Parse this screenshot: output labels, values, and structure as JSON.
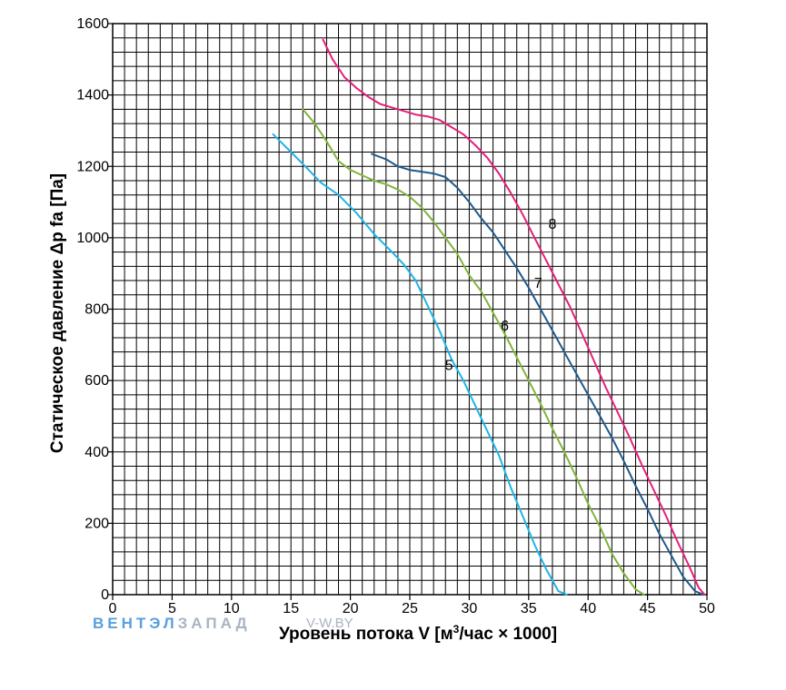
{
  "chart_data": {
    "type": "line",
    "title": "",
    "xlabel_prefix": "Уровень потока V [м",
    "xlabel_sup": "3",
    "xlabel_suffix": "/час × 1000]",
    "ylabel": "Статическое давление Δp fa [Па]",
    "xlim": [
      0,
      50
    ],
    "ylim": [
      0,
      1600
    ],
    "xticks": [
      "0",
      "5",
      "10",
      "15",
      "20",
      "25",
      "30",
      "35",
      "40",
      "45",
      "50"
    ],
    "yticks": [
      "0",
      "200",
      "400",
      "600",
      "800",
      "1000",
      "1200",
      "1400",
      "1600"
    ],
    "grid": true,
    "series": [
      {
        "name": "5",
        "color": "#1eb4e6",
        "points": [
          [
            13.5,
            1290
          ],
          [
            15,
            1240
          ],
          [
            16.5,
            1190
          ],
          [
            17.5,
            1155
          ],
          [
            19,
            1120
          ],
          [
            20.5,
            1070
          ],
          [
            22,
            1010
          ],
          [
            23.5,
            960
          ],
          [
            24.5,
            925
          ],
          [
            25.5,
            880
          ],
          [
            26.5,
            810
          ],
          [
            27.5,
            740
          ],
          [
            28.5,
            660
          ],
          [
            29.5,
            600
          ],
          [
            30.5,
            530
          ],
          [
            31.5,
            460
          ],
          [
            32.5,
            390
          ],
          [
            33.5,
            300
          ],
          [
            34.5,
            220
          ],
          [
            35.5,
            140
          ],
          [
            36.5,
            70
          ],
          [
            37.5,
            10
          ],
          [
            38.2,
            0
          ]
        ]
      },
      {
        "name": "6",
        "color": "#80b43c",
        "points": [
          [
            16,
            1360
          ],
          [
            17,
            1320
          ],
          [
            18,
            1270
          ],
          [
            19,
            1215
          ],
          [
            20,
            1190
          ],
          [
            21,
            1175
          ],
          [
            22,
            1160
          ],
          [
            23,
            1150
          ],
          [
            24,
            1135
          ],
          [
            25,
            1115
          ],
          [
            26,
            1085
          ],
          [
            27,
            1045
          ],
          [
            28,
            1000
          ],
          [
            29,
            955
          ],
          [
            30,
            895
          ],
          [
            31,
            850
          ],
          [
            32,
            790
          ],
          [
            33,
            730
          ],
          [
            34,
            665
          ],
          [
            35,
            600
          ],
          [
            36,
            535
          ],
          [
            37,
            465
          ],
          [
            38,
            400
          ],
          [
            39,
            330
          ],
          [
            40,
            255
          ],
          [
            41,
            190
          ],
          [
            42,
            115
          ],
          [
            43,
            60
          ],
          [
            44,
            15
          ],
          [
            44.7,
            0
          ]
        ]
      },
      {
        "name": "7",
        "color": "#1e5a8c",
        "points": [
          [
            21.8,
            1235
          ],
          [
            23,
            1220
          ],
          [
            24,
            1200
          ],
          [
            25,
            1190
          ],
          [
            26,
            1185
          ],
          [
            27,
            1180
          ],
          [
            28,
            1170
          ],
          [
            29,
            1140
          ],
          [
            30,
            1100
          ],
          [
            31,
            1055
          ],
          [
            32,
            1015
          ],
          [
            33,
            965
          ],
          [
            34,
            915
          ],
          [
            35,
            860
          ],
          [
            36,
            800
          ],
          [
            37,
            740
          ],
          [
            38,
            680
          ],
          [
            39,
            620
          ],
          [
            40,
            560
          ],
          [
            41,
            500
          ],
          [
            42,
            440
          ],
          [
            43,
            375
          ],
          [
            44,
            305
          ],
          [
            45,
            240
          ],
          [
            46,
            170
          ],
          [
            47,
            110
          ],
          [
            48,
            50
          ],
          [
            49,
            10
          ],
          [
            49.7,
            0
          ]
        ]
      },
      {
        "name": "8",
        "color": "#e61e78",
        "points": [
          [
            17.7,
            1555
          ],
          [
            18.5,
            1500
          ],
          [
            19.5,
            1450
          ],
          [
            20.5,
            1420
          ],
          [
            21.5,
            1395
          ],
          [
            22.5,
            1375
          ],
          [
            23.5,
            1365
          ],
          [
            24.5,
            1355
          ],
          [
            25.5,
            1345
          ],
          [
            26.5,
            1340
          ],
          [
            27.5,
            1330
          ],
          [
            28.5,
            1310
          ],
          [
            29.5,
            1290
          ],
          [
            30.5,
            1260
          ],
          [
            31.5,
            1225
          ],
          [
            32.5,
            1180
          ],
          [
            33.5,
            1125
          ],
          [
            34.5,
            1065
          ],
          [
            35.5,
            1000
          ],
          [
            36.5,
            935
          ],
          [
            37.5,
            870
          ],
          [
            38.5,
            805
          ],
          [
            39.5,
            730
          ],
          [
            40.5,
            655
          ],
          [
            41.5,
            580
          ],
          [
            42.5,
            510
          ],
          [
            43.5,
            440
          ],
          [
            44.5,
            365
          ],
          [
            45.5,
            295
          ],
          [
            46.5,
            225
          ],
          [
            47.5,
            150
          ],
          [
            48.5,
            80
          ],
          [
            49.3,
            20
          ],
          [
            49.8,
            0
          ]
        ]
      }
    ],
    "curve_labels": [
      {
        "text": "5",
        "x": 28.3,
        "y": 630
      },
      {
        "text": "6",
        "x": 33.0,
        "y": 740
      },
      {
        "text": "7",
        "x": 35.8,
        "y": 860
      },
      {
        "text": "8",
        "x": 37.0,
        "y": 1025
      }
    ]
  },
  "watermark": {
    "brand_part1": "ВЕНТЭЛ",
    "brand_part2": "ЗАПАД",
    "site": "V-W.BY",
    "color_part1": "#5aa0dc",
    "color_part2": "#aab4c0"
  }
}
